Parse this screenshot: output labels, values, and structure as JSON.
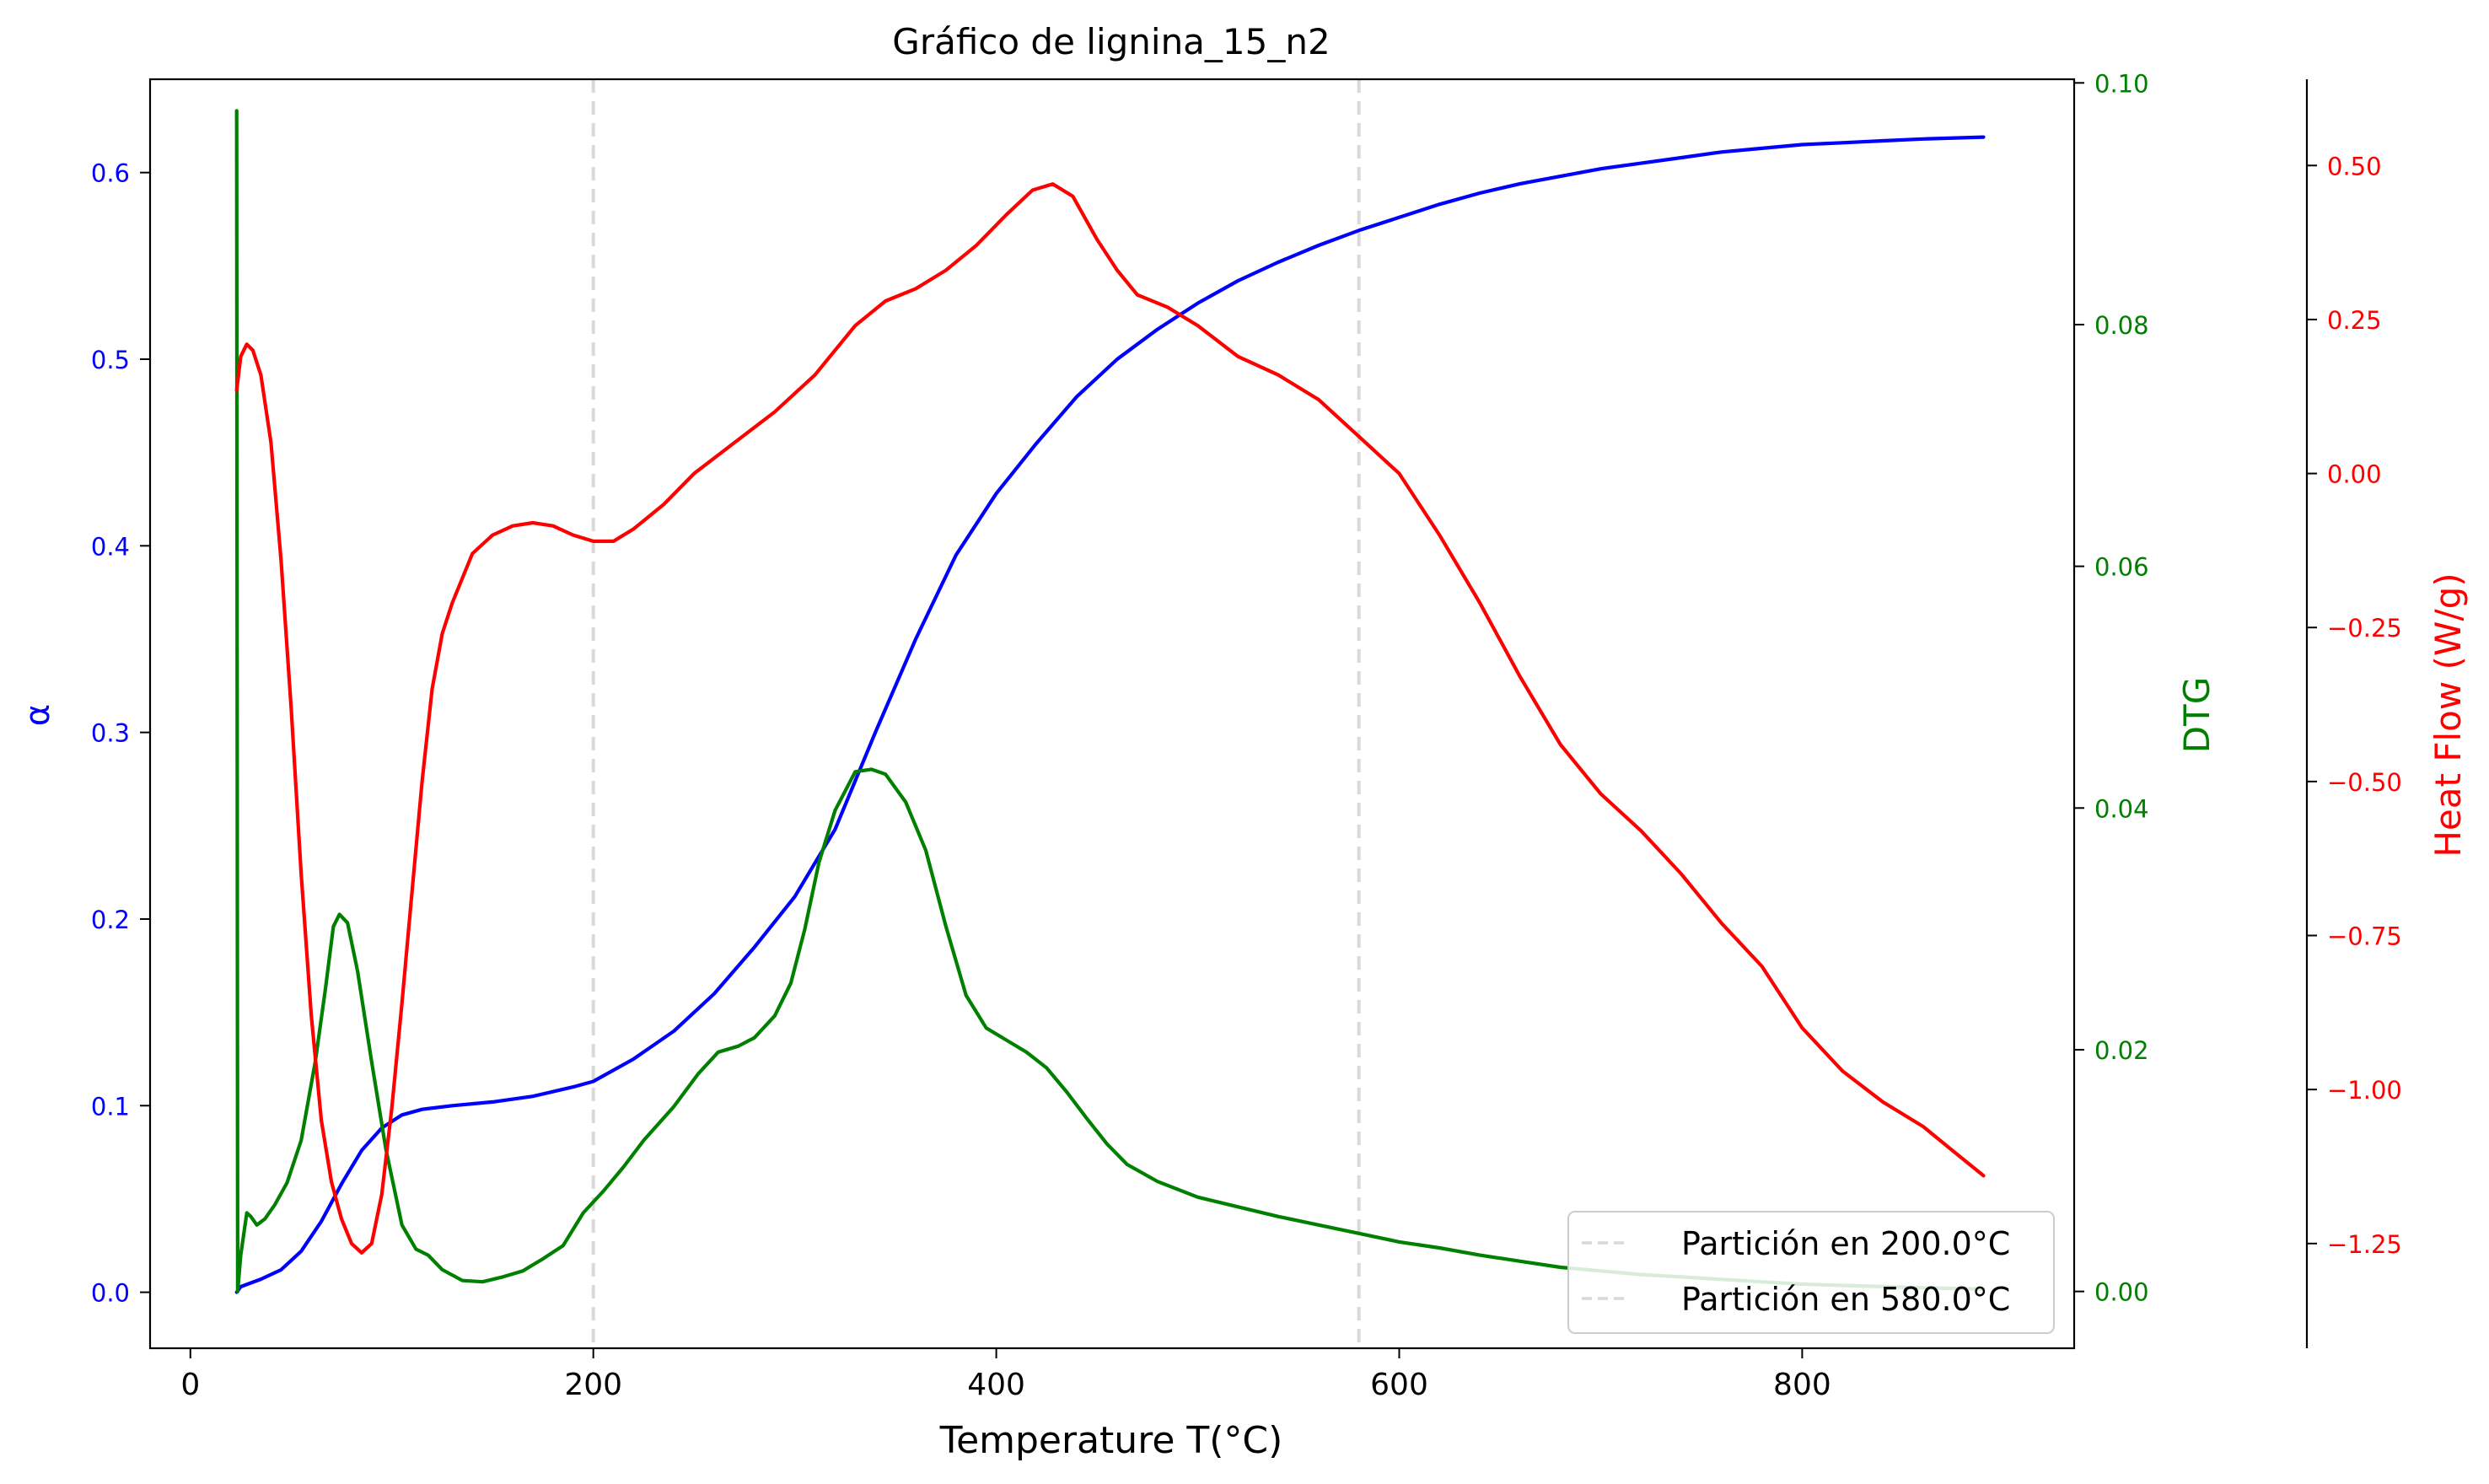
{
  "chart_data": {
    "type": "line",
    "title": "Gráfico de lignina_15_n2",
    "xlabel": "Temperature T(°C)",
    "xlim": [
      -20,
      935
    ],
    "x_ticks": [
      0,
      200,
      400,
      600,
      800
    ],
    "x_tick_labels": [
      "0",
      "200",
      "400",
      "600",
      "800"
    ],
    "grid": false,
    "legend_position": "bottom-right",
    "partitions": [
      {
        "x": 200,
        "label": "Partición en 200.0°C"
      },
      {
        "x": 580,
        "label": "Partición en 580.0°C"
      }
    ],
    "axes": [
      {
        "id": "alpha",
        "side": "left",
        "label": "α",
        "color": "#0000ff",
        "ylim": [
          -0.03,
          0.65
        ],
        "ticks": [
          0.0,
          0.1,
          0.2,
          0.3,
          0.4,
          0.5,
          0.6
        ],
        "tick_labels": [
          "0.0",
          "0.1",
          "0.2",
          "0.3",
          "0.4",
          "0.5",
          "0.6"
        ]
      },
      {
        "id": "dtg",
        "side": "right",
        "label": "DTG",
        "color": "#008000",
        "ylim": [
          -0.0047,
          0.1003
        ],
        "ticks": [
          0.0,
          0.02,
          0.04,
          0.06,
          0.08,
          0.1
        ],
        "tick_labels": [
          "0.00",
          "0.02",
          "0.04",
          "0.06",
          "0.08",
          "0.10"
        ]
      },
      {
        "id": "heat",
        "side": "right-offset",
        "label": "Heat Flow (W/g)",
        "color": "#ff0000",
        "ylim": [
          -1.42,
          0.64
        ],
        "ticks": [
          -1.25,
          -1.0,
          -0.75,
          -0.5,
          -0.25,
          0.0,
          0.25,
          0.5
        ],
        "tick_labels": [
          "−1.25",
          "−1.00",
          "−0.75",
          "−0.50",
          "−0.25",
          "0.00",
          "0.25",
          "0.50"
        ]
      }
    ],
    "series": [
      {
        "axis": "alpha",
        "color": "#0000ff",
        "points": [
          [
            23,
            0.0
          ],
          [
            25,
            0.003
          ],
          [
            35,
            0.007
          ],
          [
            45,
            0.012
          ],
          [
            55,
            0.022
          ],
          [
            65,
            0.038
          ],
          [
            75,
            0.058
          ],
          [
            85,
            0.076
          ],
          [
            95,
            0.088
          ],
          [
            105,
            0.095
          ],
          [
            115,
            0.098
          ],
          [
            130,
            0.1
          ],
          [
            150,
            0.102
          ],
          [
            170,
            0.105
          ],
          [
            190,
            0.11
          ],
          [
            200,
            0.113
          ],
          [
            220,
            0.125
          ],
          [
            240,
            0.14
          ],
          [
            260,
            0.16
          ],
          [
            280,
            0.185
          ],
          [
            300,
            0.212
          ],
          [
            320,
            0.248
          ],
          [
            340,
            0.3
          ],
          [
            360,
            0.35
          ],
          [
            380,
            0.395
          ],
          [
            400,
            0.428
          ],
          [
            420,
            0.455
          ],
          [
            440,
            0.48
          ],
          [
            460,
            0.5
          ],
          [
            480,
            0.516
          ],
          [
            500,
            0.53
          ],
          [
            520,
            0.542
          ],
          [
            540,
            0.552
          ],
          [
            560,
            0.561
          ],
          [
            580,
            0.569
          ],
          [
            600,
            0.576
          ],
          [
            620,
            0.583
          ],
          [
            640,
            0.589
          ],
          [
            660,
            0.594
          ],
          [
            680,
            0.598
          ],
          [
            700,
            0.602
          ],
          [
            720,
            0.605
          ],
          [
            740,
            0.608
          ],
          [
            760,
            0.611
          ],
          [
            780,
            0.613
          ],
          [
            800,
            0.615
          ],
          [
            820,
            0.616
          ],
          [
            840,
            0.617
          ],
          [
            860,
            0.618
          ],
          [
            890,
            0.619
          ]
        ]
      },
      {
        "axis": "dtg",
        "color": "#008000",
        "points": [
          [
            23,
            0.0977
          ],
          [
            23.5,
            0.0
          ],
          [
            25,
            0.003
          ],
          [
            28,
            0.0065
          ],
          [
            30,
            0.0062
          ],
          [
            33,
            0.0055
          ],
          [
            37,
            0.006
          ],
          [
            42,
            0.0072
          ],
          [
            48,
            0.009
          ],
          [
            55,
            0.0125
          ],
          [
            62,
            0.019
          ],
          [
            67,
            0.025
          ],
          [
            71,
            0.0302
          ],
          [
            74,
            0.0312
          ],
          [
            78,
            0.0305
          ],
          [
            83,
            0.0265
          ],
          [
            90,
            0.019
          ],
          [
            97,
            0.0118
          ],
          [
            105,
            0.0055
          ],
          [
            112,
            0.0035
          ],
          [
            118,
            0.003
          ],
          [
            125,
            0.0018
          ],
          [
            135,
            0.0009
          ],
          [
            145,
            0.0008
          ],
          [
            155,
            0.0012
          ],
          [
            165,
            0.0017
          ],
          [
            175,
            0.0027
          ],
          [
            185,
            0.0038
          ],
          [
            195,
            0.0065
          ],
          [
            205,
            0.0083
          ],
          [
            215,
            0.0103
          ],
          [
            225,
            0.0125
          ],
          [
            240,
            0.0153
          ],
          [
            252,
            0.018
          ],
          [
            262,
            0.0198
          ],
          [
            272,
            0.0203
          ],
          [
            280,
            0.021
          ],
          [
            290,
            0.0228
          ],
          [
            298,
            0.0255
          ],
          [
            305,
            0.03
          ],
          [
            312,
            0.0355
          ],
          [
            320,
            0.0398
          ],
          [
            330,
            0.043
          ],
          [
            338,
            0.0432
          ],
          [
            345,
            0.0428
          ],
          [
            355,
            0.0405
          ],
          [
            365,
            0.0365
          ],
          [
            375,
            0.0302
          ],
          [
            385,
            0.0245
          ],
          [
            395,
            0.0218
          ],
          [
            405,
            0.0208
          ],
          [
            415,
            0.0198
          ],
          [
            425,
            0.0185
          ],
          [
            435,
            0.0165
          ],
          [
            445,
            0.0143
          ],
          [
            455,
            0.0122
          ],
          [
            465,
            0.0105
          ],
          [
            480,
            0.0091
          ],
          [
            500,
            0.0078
          ],
          [
            520,
            0.007
          ],
          [
            540,
            0.0062
          ],
          [
            560,
            0.0055
          ],
          [
            580,
            0.0048
          ],
          [
            600,
            0.0041
          ],
          [
            620,
            0.0036
          ],
          [
            640,
            0.003
          ],
          [
            660,
            0.0025
          ],
          [
            680,
            0.002
          ],
          [
            700,
            0.0017
          ],
          [
            720,
            0.0014
          ],
          [
            740,
            0.0012
          ],
          [
            760,
            0.001
          ],
          [
            780,
            0.0008
          ],
          [
            800,
            0.0006
          ],
          [
            820,
            0.0005
          ],
          [
            840,
            0.0004
          ],
          [
            860,
            0.0003
          ],
          [
            890,
            0.0002
          ]
        ]
      },
      {
        "axis": "heat",
        "color": "#ff0000",
        "points": [
          [
            23,
            0.135
          ],
          [
            25,
            0.19
          ],
          [
            28,
            0.21
          ],
          [
            31,
            0.2
          ],
          [
            35,
            0.16
          ],
          [
            40,
            0.05
          ],
          [
            45,
            -0.14
          ],
          [
            50,
            -0.38
          ],
          [
            55,
            -0.65
          ],
          [
            60,
            -0.88
          ],
          [
            65,
            -1.05
          ],
          [
            70,
            -1.15
          ],
          [
            75,
            -1.21
          ],
          [
            80,
            -1.25
          ],
          [
            85,
            -1.265
          ],
          [
            90,
            -1.25
          ],
          [
            95,
            -1.17
          ],
          [
            100,
            -1.03
          ],
          [
            105,
            -0.86
          ],
          [
            110,
            -0.68
          ],
          [
            115,
            -0.5
          ],
          [
            120,
            -0.35
          ],
          [
            125,
            -0.26
          ],
          [
            130,
            -0.21
          ],
          [
            140,
            -0.13
          ],
          [
            150,
            -0.1
          ],
          [
            160,
            -0.085
          ],
          [
            170,
            -0.08
          ],
          [
            180,
            -0.085
          ],
          [
            190,
            -0.1
          ],
          [
            200,
            -0.11
          ],
          [
            210,
            -0.11
          ],
          [
            220,
            -0.09
          ],
          [
            235,
            -0.05
          ],
          [
            250,
            0.0
          ],
          [
            270,
            0.05
          ],
          [
            290,
            0.1
          ],
          [
            310,
            0.16
          ],
          [
            330,
            0.24
          ],
          [
            345,
            0.28
          ],
          [
            360,
            0.3
          ],
          [
            375,
            0.33
          ],
          [
            390,
            0.37
          ],
          [
            405,
            0.42
          ],
          [
            418,
            0.46
          ],
          [
            428,
            0.47
          ],
          [
            438,
            0.45
          ],
          [
            450,
            0.38
          ],
          [
            460,
            0.33
          ],
          [
            470,
            0.29
          ],
          [
            485,
            0.27
          ],
          [
            500,
            0.24
          ],
          [
            520,
            0.19
          ],
          [
            540,
            0.16
          ],
          [
            560,
            0.12
          ],
          [
            580,
            0.06
          ],
          [
            600,
            0.0
          ],
          [
            620,
            -0.1
          ],
          [
            640,
            -0.21
          ],
          [
            660,
            -0.33
          ],
          [
            680,
            -0.44
          ],
          [
            700,
            -0.52
          ],
          [
            720,
            -0.58
          ],
          [
            740,
            -0.65
          ],
          [
            760,
            -0.73
          ],
          [
            780,
            -0.8
          ],
          [
            800,
            -0.9
          ],
          [
            820,
            -0.97
          ],
          [
            840,
            -1.02
          ],
          [
            860,
            -1.06
          ],
          [
            875,
            -1.1
          ],
          [
            890,
            -1.14
          ]
        ]
      }
    ]
  }
}
